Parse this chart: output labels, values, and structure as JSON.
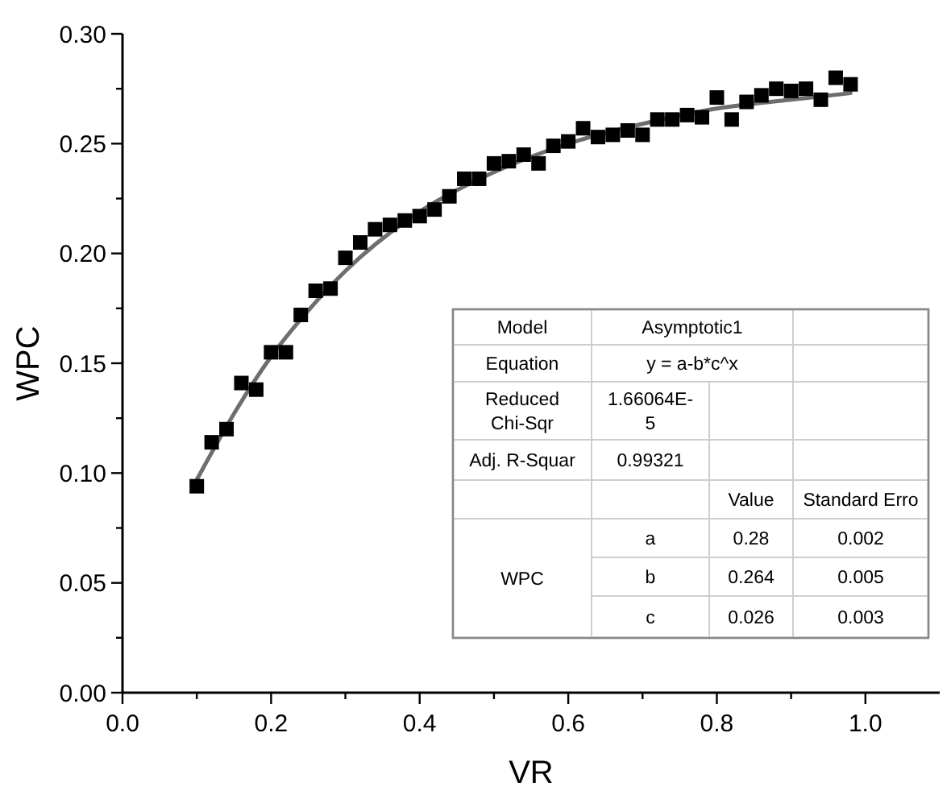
{
  "chart_data": {
    "type": "scatter",
    "xlabel": "VR",
    "ylabel": "WPC",
    "xlim": [
      0,
      1.1
    ],
    "ylim": [
      0,
      0.3
    ],
    "xticks": [
      {
        "value": 0,
        "label": "0.0"
      },
      {
        "value": 0.1,
        "label": null
      },
      {
        "value": 0.2,
        "label": "0.2"
      },
      {
        "value": 0.3,
        "label": null
      },
      {
        "value": 0.4,
        "label": "0.4"
      },
      {
        "value": 0.5,
        "label": null
      },
      {
        "value": 0.6,
        "label": "0.6"
      },
      {
        "value": 0.7,
        "label": null
      },
      {
        "value": 0.8,
        "label": "0.8"
      },
      {
        "value": 0.9,
        "label": null
      },
      {
        "value": 1,
        "label": "1.0"
      }
    ],
    "yticks": [
      {
        "value": 0,
        "label": "0.00"
      },
      {
        "value": 0.025,
        "label": null
      },
      {
        "value": 0.05,
        "label": "0.05"
      },
      {
        "value": 0.075,
        "label": null
      },
      {
        "value": 0.1,
        "label": "0.10"
      },
      {
        "value": 0.125,
        "label": null
      },
      {
        "value": 0.15,
        "label": "0.15"
      },
      {
        "value": 0.175,
        "label": null
      },
      {
        "value": 0.2,
        "label": "0.20"
      },
      {
        "value": 0.225,
        "label": null
      },
      {
        "value": 0.25,
        "label": "0.25"
      },
      {
        "value": 0.275,
        "label": null
      },
      {
        "value": 0.3,
        "label": "0.30"
      }
    ],
    "grid": false,
    "series": [
      {
        "type": "line",
        "color": "#6e6e6e",
        "marker": "none",
        "line_style": "solid",
        "x": [
          0.1,
          0.15,
          0.2,
          0.25,
          0.3,
          0.4,
          0.5,
          0.6,
          0.7,
          0.8,
          0.9,
          0.98
        ],
        "values": [
          0.097,
          0.127,
          0.153,
          0.174,
          0.192,
          0.219,
          0.237,
          0.25,
          0.259,
          0.266,
          0.27,
          0.273
        ]
      },
      {
        "type": "scatter",
        "color": "#000000",
        "marker": "square",
        "x": [
          0.1,
          0.12,
          0.14,
          0.16,
          0.18,
          0.2,
          0.22,
          0.24,
          0.26,
          0.28,
          0.3,
          0.32,
          0.34,
          0.36,
          0.38,
          0.4,
          0.42,
          0.44,
          0.46,
          0.48,
          0.5,
          0.52,
          0.54,
          0.56,
          0.58,
          0.6,
          0.62,
          0.64,
          0.66,
          0.68,
          0.7,
          0.72,
          0.74,
          0.76,
          0.78,
          0.8,
          0.82,
          0.84,
          0.86,
          0.88,
          0.9,
          0.92,
          0.94,
          0.96,
          0.98
        ],
        "values": [
          0.094,
          0.114,
          0.12,
          0.141,
          0.138,
          0.155,
          0.155,
          0.172,
          0.183,
          0.184,
          0.198,
          0.205,
          0.211,
          0.213,
          0.215,
          0.217,
          0.22,
          0.226,
          0.234,
          0.234,
          0.241,
          0.242,
          0.245,
          0.241,
          0.249,
          0.251,
          0.257,
          0.253,
          0.254,
          0.256,
          0.254,
          0.261,
          0.261,
          0.263,
          0.262,
          0.271,
          0.261,
          0.269,
          0.272,
          0.275,
          0.274,
          0.275,
          0.27,
          0.28,
          0.277
        ]
      }
    ],
    "annotations": [
      "Model",
      "Asymptotic1",
      "Equation",
      "y = a-b*c^x",
      "Reduced\nChi-Sqr",
      "1.66064E-\n5",
      "Adj. R-Squar",
      "0.99321",
      "Value",
      "Standard Erro",
      "WPC",
      "a",
      "0.28",
      "0.002",
      "b",
      "0.264",
      "0.005",
      "c",
      "0.026",
      "0.003"
    ]
  }
}
